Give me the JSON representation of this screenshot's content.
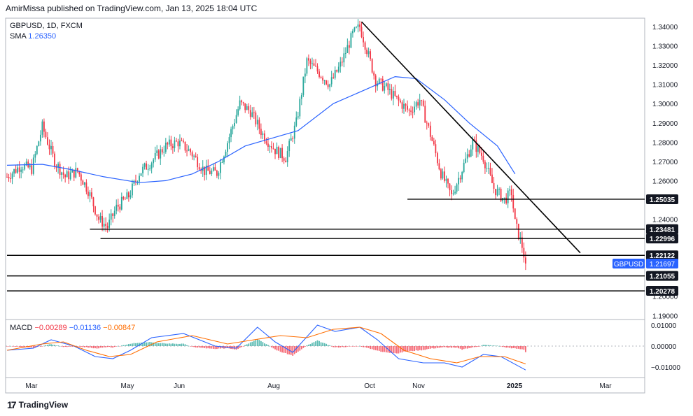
{
  "header": {
    "publisher": "AmirMissa published on TradingView.com, Jan 13, 2025 18:04 UTC"
  },
  "legend": {
    "symbol": "GBPUSD, 1D, FXCM",
    "sma_label": "SMA",
    "sma_value": "1.26350",
    "macd_label": "MACD",
    "macd_hist": "−0.00289",
    "macd_line": "−0.01136",
    "macd_signal": "−0.00847"
  },
  "footer": {
    "brand": "TradingView"
  },
  "colors": {
    "up": "#26a69a",
    "down": "#f23645",
    "sma": "#2962ff",
    "macd": "#2962ff",
    "signal": "#ff6d00",
    "hist_up": "#26a69a",
    "hist_down": "#f23645",
    "label_bg": "#131722",
    "price_label_bg": "#2962ff"
  },
  "chart_data": [
    {
      "type": "candlestick",
      "symbol": "GBPUSD",
      "timeframe": "1D",
      "x_ticks": [
        "Mar",
        "May",
        "Jun",
        "Aug",
        "Oct",
        "Nov",
        "2025",
        "Mar"
      ],
      "y_ticks": [
        "1.34000",
        "1.33000",
        "1.32000",
        "1.31000",
        "1.30000",
        "1.29000",
        "1.28000",
        "1.27000",
        "1.26000",
        "1.24000",
        "1.20000",
        "1.19000"
      ],
      "ylim": [
        1.1875,
        1.3435
      ],
      "close_path": [
        [
          0,
          1.262
        ],
        [
          8,
          1.268
        ],
        [
          14,
          1.266
        ],
        [
          20,
          1.288
        ],
        [
          27,
          1.27
        ],
        [
          33,
          1.262
        ],
        [
          40,
          1.265
        ],
        [
          46,
          1.255
        ],
        [
          52,
          1.24
        ],
        [
          57,
          1.236
        ],
        [
          62,
          1.246
        ],
        [
          69,
          1.252
        ],
        [
          75,
          1.264
        ],
        [
          82,
          1.27
        ],
        [
          90,
          1.278
        ],
        [
          97,
          1.28
        ],
        [
          104,
          1.275
        ],
        [
          112,
          1.265
        ],
        [
          119,
          1.264
        ],
        [
          125,
          1.28
        ],
        [
          132,
          1.3
        ],
        [
          138,
          1.296
        ],
        [
          145,
          1.284
        ],
        [
          152,
          1.276
        ],
        [
          158,
          1.272
        ],
        [
          164,
          1.29
        ],
        [
          170,
          1.322
        ],
        [
          177,
          1.316
        ],
        [
          183,
          1.31
        ],
        [
          189,
          1.32
        ],
        [
          196,
          1.336
        ],
        [
          200,
          1.34
        ],
        [
          204,
          1.328
        ],
        [
          209,
          1.312
        ],
        [
          215,
          1.308
        ],
        [
          221,
          1.302
        ],
        [
          228,
          1.296
        ],
        [
          234,
          1.302
        ],
        [
          240,
          1.284
        ],
        [
          246,
          1.264
        ],
        [
          252,
          1.252
        ],
        [
          258,
          1.266
        ],
        [
          264,
          1.28
        ],
        [
          270,
          1.272
        ],
        [
          276,
          1.256
        ],
        [
          282,
          1.25
        ],
        [
          286,
          1.254
        ],
        [
          288,
          1.238
        ],
        [
          292,
          1.226
        ],
        [
          294,
          1.217
        ]
      ],
      "sma": {
        "name": "SMA",
        "value": "1.26350",
        "path": [
          [
            0,
            1.268
          ],
          [
            20,
            1.2685
          ],
          [
            35,
            1.266
          ],
          [
            55,
            1.262
          ],
          [
            75,
            1.259
          ],
          [
            90,
            1.26
          ],
          [
            105,
            1.2635
          ],
          [
            120,
            1.27
          ],
          [
            135,
            1.278
          ],
          [
            150,
            1.282
          ],
          [
            165,
            1.286
          ],
          [
            185,
            1.3
          ],
          [
            205,
            1.308
          ],
          [
            220,
            1.314
          ],
          [
            232,
            1.313
          ],
          [
            248,
            1.302
          ],
          [
            262,
            1.29
          ],
          [
            278,
            1.278
          ],
          [
            288,
            1.2635
          ]
        ]
      },
      "annotations": {
        "horizontal_levels": [
          {
            "price": 1.25035,
            "label": "1.25035",
            "x_start": 227
          },
          {
            "price": 1.23481,
            "label": "1.23481",
            "x_start": 47
          },
          {
            "price": 1.22996,
            "label": "1.22996",
            "x_start": 53
          },
          {
            "price": 1.22122,
            "label": "1.22122",
            "x_start": 0
          },
          {
            "price": 1.21055,
            "label": "1.21055",
            "x_start": 0
          },
          {
            "price": 1.20278,
            "label": "1.20278",
            "x_start": 0
          }
        ],
        "trendline": {
          "from": [
            201,
            1.3425
          ],
          "to": [
            325,
            1.2225
          ]
        },
        "last_price": {
          "symbol": "GBPUSD",
          "label": "1.21697",
          "price": 1.21697
        }
      }
    },
    {
      "type": "macd",
      "y_ticks": [
        "0.01000",
        "0.00000",
        "−0.01000"
      ],
      "ylim": [
        -0.0118,
        0.0112
      ],
      "macd_path": [
        [
          0,
          -0.002
        ],
        [
          15,
          -0.001
        ],
        [
          25,
          0.003
        ],
        [
          38,
          0.0
        ],
        [
          50,
          -0.005
        ],
        [
          60,
          -0.006
        ],
        [
          70,
          -0.002
        ],
        [
          82,
          0.004
        ],
        [
          100,
          0.006
        ],
        [
          118,
          0.0
        ],
        [
          130,
          -0.001
        ],
        [
          142,
          0.009
        ],
        [
          152,
          0.002
        ],
        [
          162,
          -0.003
        ],
        [
          176,
          0.01
        ],
        [
          186,
          0.007
        ],
        [
          200,
          0.009
        ],
        [
          210,
          0.003
        ],
        [
          222,
          -0.006
        ],
        [
          236,
          -0.008
        ],
        [
          248,
          -0.008
        ],
        [
          258,
          -0.01
        ],
        [
          270,
          -0.004
        ],
        [
          280,
          -0.005
        ],
        [
          294,
          -0.0114
        ]
      ],
      "signal_path": [
        [
          0,
          -0.002
        ],
        [
          20,
          0.001
        ],
        [
          32,
          0.002
        ],
        [
          45,
          -0.002
        ],
        [
          58,
          -0.005
        ],
        [
          70,
          -0.004
        ],
        [
          85,
          0.002
        ],
        [
          105,
          0.005
        ],
        [
          125,
          0.001
        ],
        [
          140,
          0.003
        ],
        [
          155,
          0.005
        ],
        [
          170,
          0.004
        ],
        [
          185,
          0.008
        ],
        [
          200,
          0.009
        ],
        [
          212,
          0.006
        ],
        [
          225,
          -0.002
        ],
        [
          240,
          -0.006
        ],
        [
          255,
          -0.008
        ],
        [
          268,
          -0.005
        ],
        [
          282,
          -0.005
        ],
        [
          294,
          -0.0085
        ]
      ],
      "histogram_last": -0.00289
    }
  ]
}
